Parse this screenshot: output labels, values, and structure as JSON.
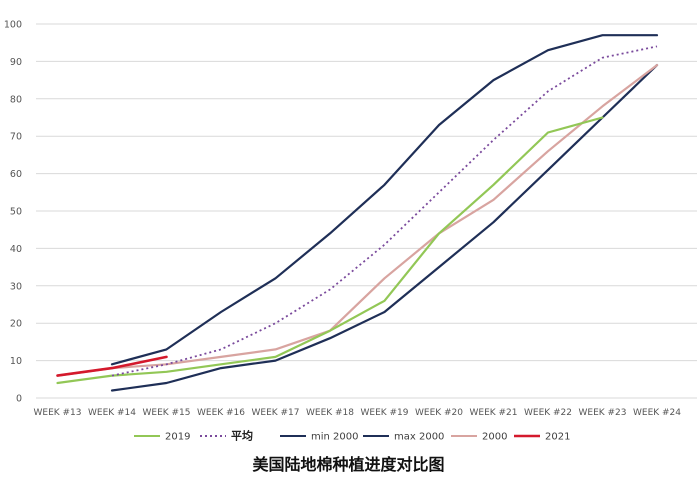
{
  "chart_data": {
    "type": "line",
    "title": "美国陆地棉种植进度对比图",
    "categories": [
      "WEEK #13",
      "WEEK #14",
      "WEEK #15",
      "WEEK #16",
      "WEEK #17",
      "WEEK #18",
      "WEEK #19",
      "WEEK #20",
      "WEEK #21",
      "WEEK #22",
      "WEEK #23",
      "WEEK #24"
    ],
    "y_ticks": [
      0,
      10,
      20,
      30,
      40,
      50,
      60,
      70,
      80,
      90,
      100
    ],
    "ylim": [
      0,
      100
    ],
    "grid": true,
    "legend_position": "bottom",
    "series": [
      {
        "name": "2019",
        "color": "#92c756",
        "dash": "solid",
        "values": [
          4,
          6,
          7,
          9,
          11,
          18,
          26,
          44,
          57,
          71,
          75,
          null
        ]
      },
      {
        "name": "平均",
        "color": "#7a4a9c",
        "dash": "dotted",
        "values": [
          null,
          6,
          9,
          13,
          20,
          29,
          41,
          55,
          69,
          82,
          91,
          94
        ]
      },
      {
        "name": "min 2000",
        "color": "#1f2f57",
        "dash": "solid",
        "values": [
          null,
          2,
          4,
          8,
          10,
          16,
          23,
          35,
          47,
          61,
          75,
          89
        ]
      },
      {
        "name": "max 2000",
        "color": "#1f2f57",
        "dash": "solid",
        "values": [
          null,
          9,
          13,
          23,
          32,
          44,
          57,
          73,
          85,
          93,
          97,
          97
        ]
      },
      {
        "name": "2000",
        "color": "#d8a4a0",
        "dash": "solid",
        "values": [
          6,
          8,
          9,
          11,
          13,
          18,
          32,
          44,
          53,
          66,
          78,
          89
        ]
      },
      {
        "name": "2021",
        "color": "#d4192c",
        "dash": "solid",
        "values": [
          6,
          8,
          11,
          null,
          null,
          null,
          null,
          null,
          null,
          null,
          null,
          null
        ]
      }
    ]
  }
}
